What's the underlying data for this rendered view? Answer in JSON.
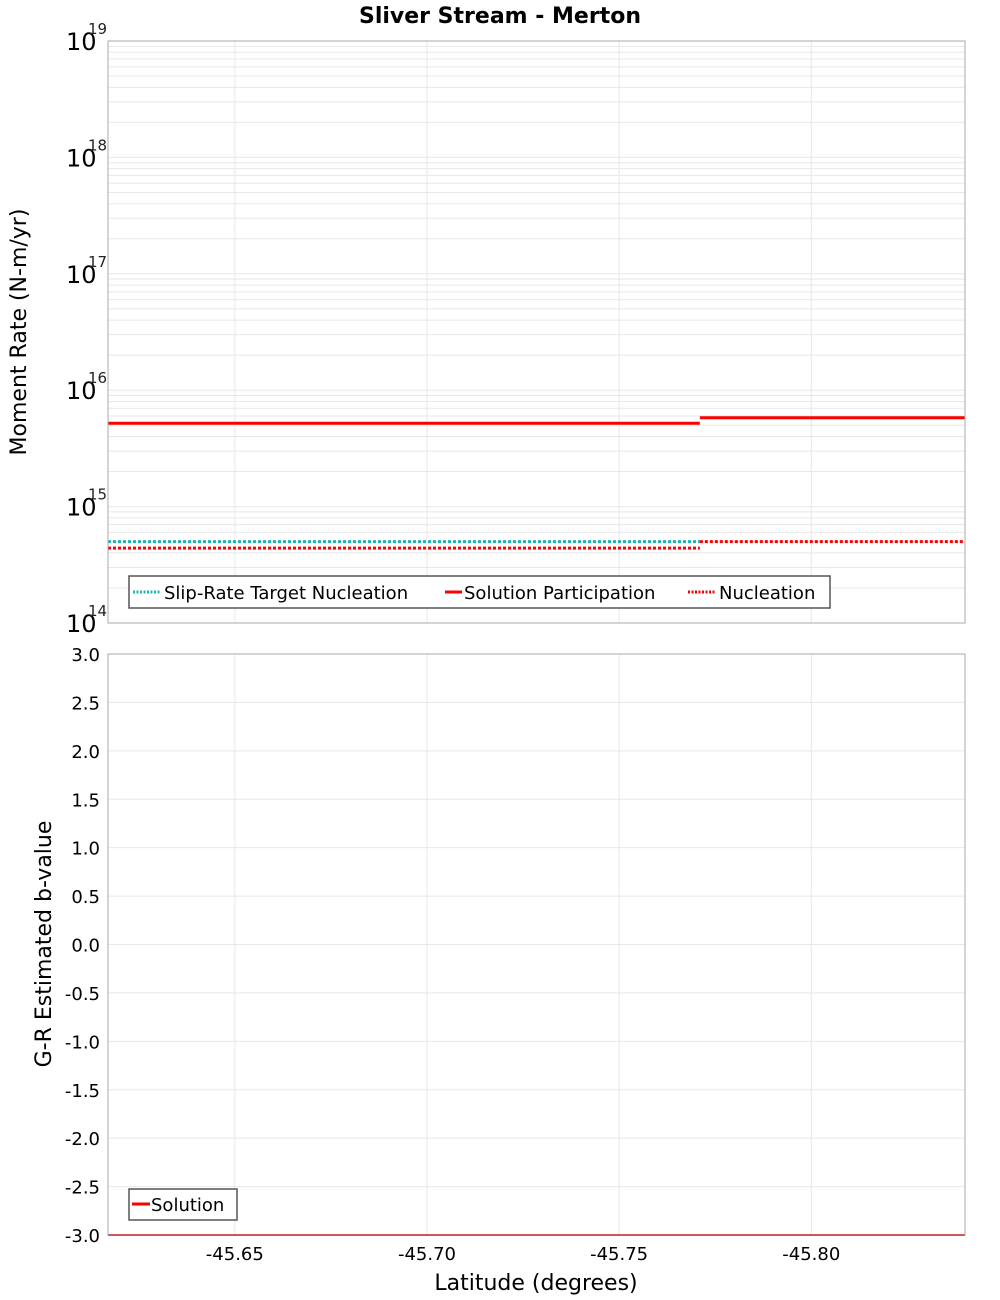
{
  "title": "Sliver Stream - Merton",
  "colors": {
    "solution": "#ff0000",
    "target": "#1bb5b5",
    "grid": "#e8e8e8",
    "frame": "#aaaaaa"
  },
  "chart_data": [
    {
      "type": "line",
      "title": "Sliver Stream - Merton",
      "xlabel": "Latitude (degrees)",
      "ylabel": "Moment Rate (N-m/yr)",
      "yscale": "log",
      "ylim": [
        100000000000000.0,
        1e+19
      ],
      "xlim": [
        -45.617,
        -45.84
      ],
      "x_ticks": [
        "-45.65",
        "-45.70",
        "-45.75",
        "-45.80"
      ],
      "y_ticks": [
        {
          "base": "10",
          "exp": "14"
        },
        {
          "base": "10",
          "exp": "15"
        },
        {
          "base": "10",
          "exp": "16"
        },
        {
          "base": "10",
          "exp": "17"
        },
        {
          "base": "10",
          "exp": "18"
        },
        {
          "base": "10",
          "exp": "19"
        }
      ],
      "grid": true,
      "legend_position": "lower-left",
      "series": [
        {
          "name": "Slip-Rate Target Nucleation",
          "style": "dotted",
          "color": "#1bb5b5",
          "segments": [
            {
              "x": [
                -45.617,
                -45.771
              ],
              "y": 500000000000000.0
            }
          ]
        },
        {
          "name": "Solution Participation",
          "style": "solid",
          "color": "#ff0000",
          "segments": [
            {
              "x": [
                -45.617,
                -45.771
              ],
              "y": 5200000000000000.0
            },
            {
              "x": [
                -45.771,
                -45.84
              ],
              "y": 5800000000000000.0
            }
          ]
        },
        {
          "name": "Nucleation",
          "style": "dotted",
          "color": "#ff0000",
          "segments": [
            {
              "x": [
                -45.617,
                -45.771
              ],
              "y": 440000000000000.0
            },
            {
              "x": [
                -45.771,
                -45.84
              ],
              "y": 500000000000000.0
            }
          ]
        }
      ]
    },
    {
      "type": "line",
      "xlabel": "Latitude (degrees)",
      "ylabel": "G-R Estimated b-value",
      "ylim": [
        -3.0,
        3.0
      ],
      "xlim": [
        -45.617,
        -45.84
      ],
      "x_ticks": [
        "-45.65",
        "-45.70",
        "-45.75",
        "-45.80"
      ],
      "y_ticks": [
        "3.0",
        "2.5",
        "2.0",
        "1.5",
        "1.0",
        "0.5",
        "0.0",
        "-0.5",
        "-1.0",
        "-1.5",
        "-2.0",
        "-2.5",
        "-3.0"
      ],
      "grid": true,
      "legend_position": "lower-left",
      "series": [
        {
          "name": "Solution",
          "style": "solid",
          "color": "#ff0000",
          "segments": [
            {
              "x": [
                -45.617,
                -45.84
              ],
              "y": -3.0
            }
          ]
        }
      ]
    }
  ],
  "top_plot": {
    "ylabel": "Moment Rate (N-m/yr)",
    "legend": [
      "Slip-Rate Target Nucleation",
      "Solution Participation",
      "Nucleation"
    ]
  },
  "bottom_plot": {
    "ylabel": "G-R Estimated b-value",
    "xlabel": "Latitude (degrees)",
    "legend": [
      "Solution"
    ]
  }
}
